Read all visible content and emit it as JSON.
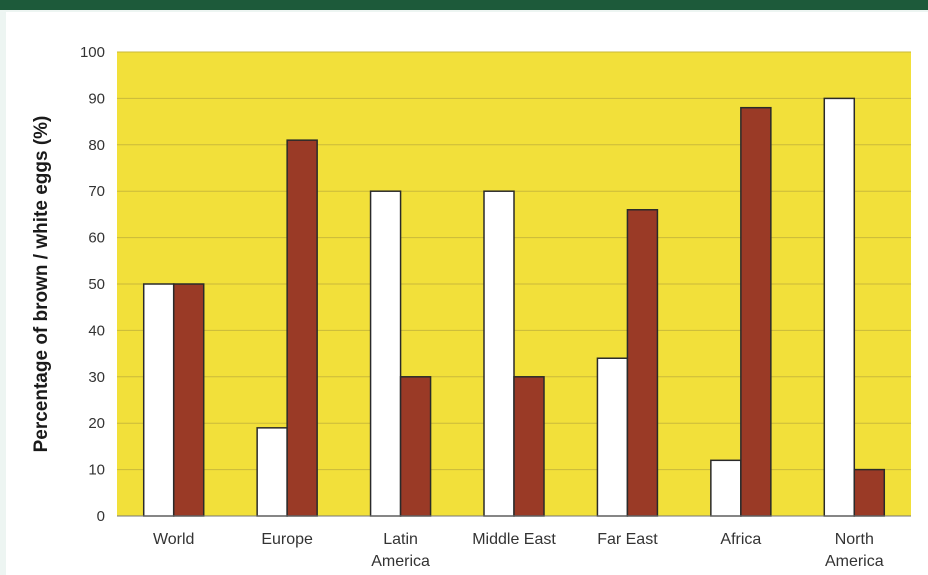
{
  "colors": {
    "plot_background": "#f2e03a",
    "gridline": "#c9b93a",
    "brown_bar": "#9a3a26",
    "white_bar": "#ffffff",
    "bar_outline": "#2a2a2a",
    "page_band": "#1d5a3a"
  },
  "chart_data": {
    "type": "bar",
    "title": "",
    "xlabel": "",
    "ylabel": "Percentage of brown / white eggs (%)",
    "ylim": [
      0,
      100
    ],
    "yticks": [
      "0",
      "10",
      "20",
      "30",
      "40",
      "50",
      "60",
      "70",
      "80",
      "90",
      "100"
    ],
    "grid": true,
    "categories": [
      [
        "World"
      ],
      [
        "Europe"
      ],
      [
        "Latin",
        "America"
      ],
      [
        "Middle East"
      ],
      [
        "Far East"
      ],
      [
        "Africa"
      ],
      [
        "North",
        "America"
      ]
    ],
    "series": [
      {
        "color": "#ffffff",
        "values": [
          50,
          19,
          70,
          70,
          34,
          12,
          90
        ]
      },
      {
        "color": "#9a3a26",
        "values": [
          50,
          81,
          30,
          30,
          66,
          88,
          10
        ]
      }
    ]
  }
}
